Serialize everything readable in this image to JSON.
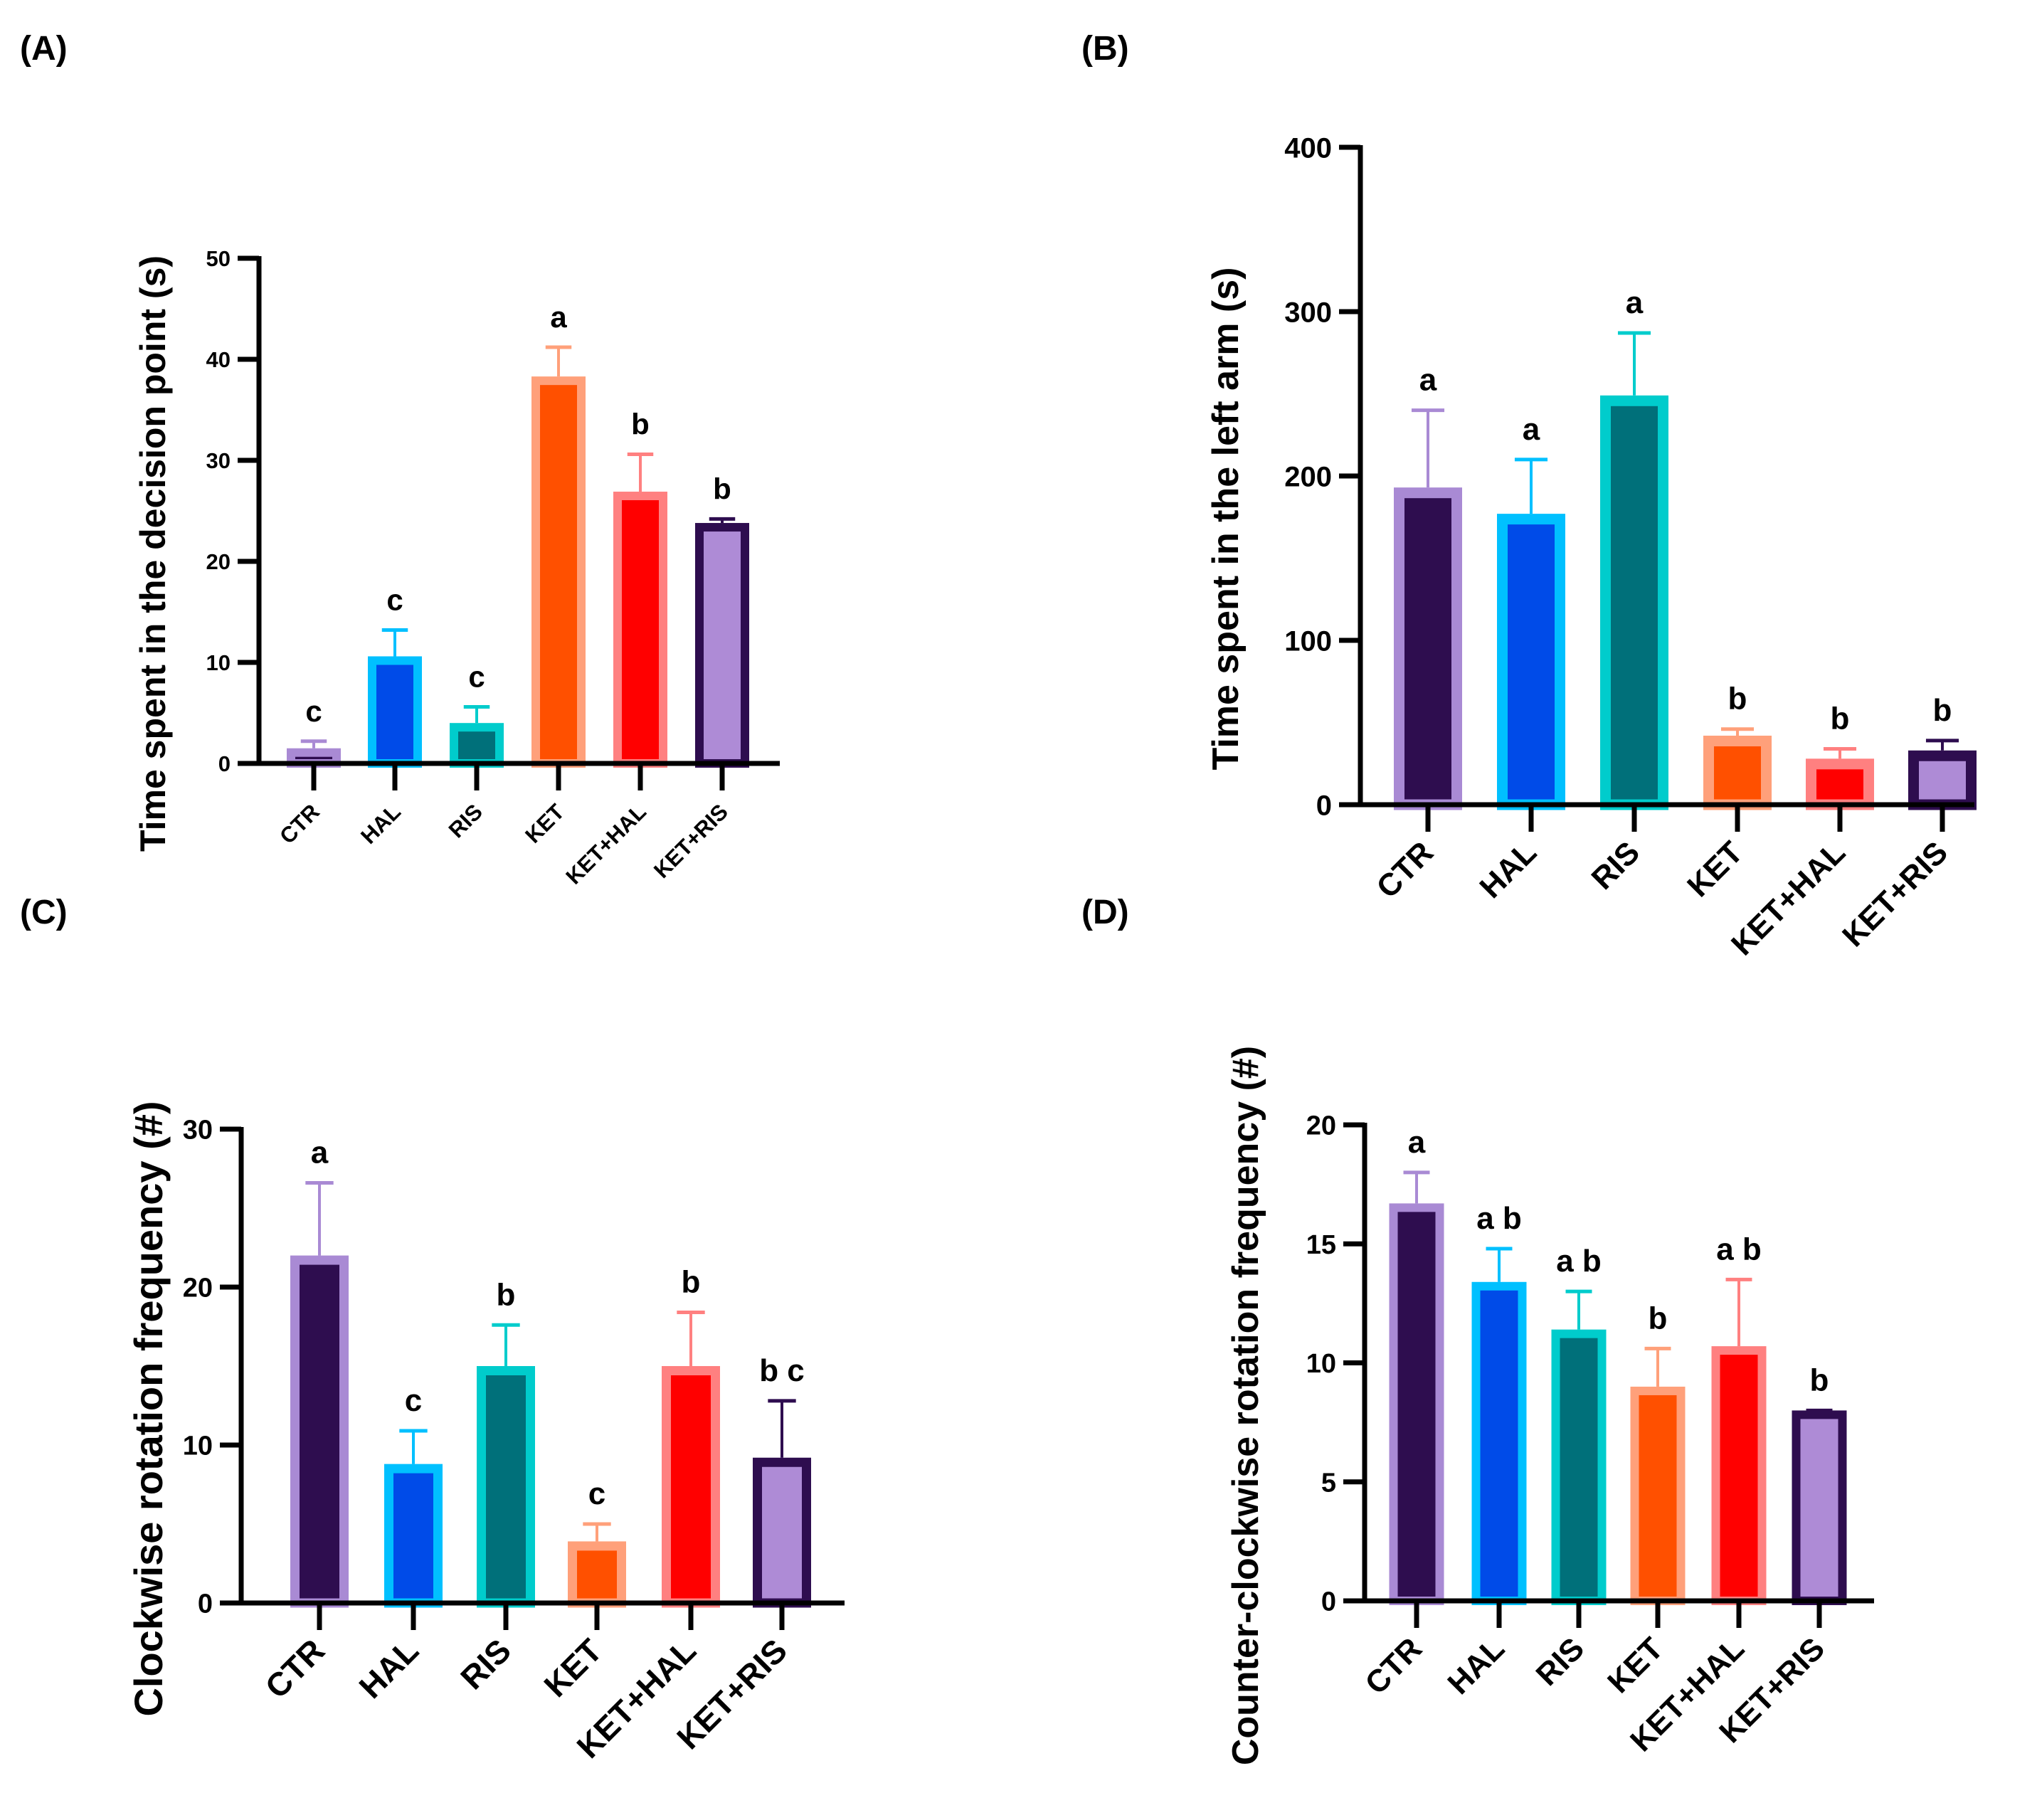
{
  "group_colors": {
    "CTR": {
      "fill": "#2e0d4f",
      "border": "#a98ad4"
    },
    "HAL": {
      "fill": "#004be8",
      "border": "#00c0ff"
    },
    "RIS": {
      "fill": "#00707a",
      "border": "#00cccc"
    },
    "KET": {
      "fill": "#ff5000",
      "border": "#ffa07a"
    },
    "KET+HAL": {
      "fill": "#ff0000",
      "border": "#ff8080"
    },
    "KET+RIS": {
      "fill": "#ae8bd6",
      "border": "#2e0d4f"
    }
  },
  "chart_data": [
    {
      "type": "bar",
      "panel": "(A)",
      "ylabel": "Time spent in the decision point (s)",
      "categories": [
        "CTR",
        "HAL",
        "RIS",
        "KET",
        "KET+HAL",
        "KET+RIS"
      ],
      "values": [
        1.5,
        10.6,
        4.0,
        38.3,
        26.9,
        23.8
      ],
      "error_upper": [
        2.2,
        13.2,
        5.6,
        41.2,
        30.6,
        24.2
      ],
      "letters": [
        "c",
        "c",
        "c",
        "a",
        "b",
        "b"
      ],
      "ylim": [
        0,
        50
      ],
      "yticks": [
        0,
        10,
        20,
        30,
        40,
        50
      ]
    },
    {
      "type": "bar",
      "panel": "(B)",
      "ylabel": "Time spent in the left arm (s)",
      "categories": [
        "CTR",
        "HAL",
        "RIS",
        "KET",
        "KET+HAL",
        "KET+RIS"
      ],
      "values": [
        193,
        177,
        249,
        42,
        28,
        33
      ],
      "error_upper": [
        240,
        210,
        287,
        46,
        34,
        39
      ],
      "letters": [
        "a",
        "a",
        "a",
        "b",
        "b",
        "b"
      ],
      "ylim": [
        0,
        400
      ],
      "yticks": [
        0,
        100,
        200,
        300,
        400
      ]
    },
    {
      "type": "bar",
      "panel": "(C)",
      "ylabel": "Clockwise rotation frequency (#)",
      "categories": [
        "CTR",
        "HAL",
        "RIS",
        "KET",
        "KET+HAL",
        "KET+RIS"
      ],
      "values": [
        22.0,
        8.8,
        15.0,
        3.9,
        15.0,
        9.2
      ],
      "error_upper": [
        26.6,
        10.9,
        17.6,
        5.0,
        18.4,
        12.8
      ],
      "letters": [
        "a",
        "c",
        "b",
        "c",
        "b",
        "b c"
      ],
      "ylim": [
        0,
        30
      ],
      "yticks": [
        0,
        10,
        20,
        30
      ]
    },
    {
      "type": "bar",
      "panel": "(D)",
      "ylabel": "Counter-clockwise rotation frequency (#)",
      "categories": [
        "CTR",
        "HAL",
        "RIS",
        "KET",
        "KET+HAL",
        "KET+RIS"
      ],
      "values": [
        16.7,
        13.4,
        11.4,
        9.0,
        10.7,
        8.0
      ],
      "error_upper": [
        18.0,
        14.8,
        13.0,
        10.6,
        13.5,
        8.0
      ],
      "letters": [
        "a",
        "a b",
        "a b",
        "b",
        "a b",
        "b"
      ],
      "ylim": [
        0,
        20
      ],
      "yticks": [
        0,
        5,
        10,
        15,
        20
      ]
    }
  ]
}
